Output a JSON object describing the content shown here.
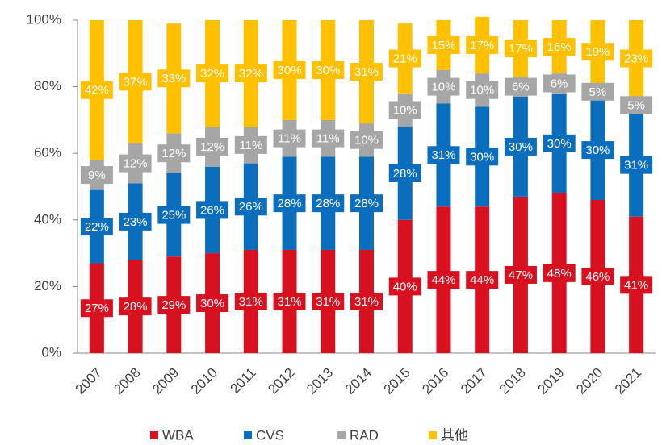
{
  "chart_data": {
    "type": "stacked_bar",
    "categories": [
      "2007",
      "2008",
      "2009",
      "2010",
      "2011",
      "2012",
      "2013",
      "2014",
      "2015",
      "2016",
      "2017",
      "2018",
      "2019",
      "2020",
      "2021"
    ],
    "series": [
      {
        "name": "WBA",
        "color": "#d7111f",
        "values": [
          27,
          28,
          29,
          30,
          31,
          31,
          31,
          31,
          40,
          44,
          44,
          47,
          48,
          46,
          41
        ],
        "value_labels": [
          "27%",
          "28%",
          "29%",
          "30%",
          "31%",
          "31%",
          "31%",
          "31%",
          "40%",
          "44%",
          "44%",
          "47%",
          "48%",
          "46%",
          "41%"
        ]
      },
      {
        "name": "CVS",
        "color": "#0a6ebd",
        "values": [
          22,
          23,
          25,
          26,
          26,
          28,
          28,
          28,
          28,
          31,
          30,
          30,
          30,
          30,
          31
        ],
        "value_labels": [
          "22%",
          "23%",
          "25%",
          "26%",
          "26%",
          "28%",
          "28%",
          "28%",
          "28%",
          "31%",
          "30%",
          "30%",
          "30%",
          "30%",
          "31%"
        ]
      },
      {
        "name": "RAD",
        "color": "#a6a6a6",
        "values": [
          9,
          12,
          12,
          12,
          11,
          11,
          11,
          10,
          10,
          10,
          10,
          6,
          6,
          5,
          5
        ],
        "value_labels": [
          "9%",
          "12%",
          "12%",
          "12%",
          "11%",
          "11%",
          "11%",
          "10%",
          "10%",
          "10%",
          "10%",
          "6%",
          "6%",
          "5%",
          "5%"
        ]
      },
      {
        "name": "其他",
        "color": "#ffc000",
        "values": [
          42,
          37,
          33,
          32,
          32,
          30,
          30,
          31,
          21,
          15,
          17,
          17,
          16,
          19,
          23
        ],
        "value_labels": [
          "42%",
          "37%",
          "33%",
          "32%",
          "32%",
          "30%",
          "30%",
          "31%",
          "21%",
          "15%",
          "17%",
          "17%",
          "16%",
          "19%",
          "23%"
        ]
      }
    ],
    "ylim": [
      0,
      100
    ],
    "yticks": [
      {
        "value": 0,
        "label": "0%"
      },
      {
        "value": 20,
        "label": "20%"
      },
      {
        "value": 40,
        "label": "40%"
      },
      {
        "value": 60,
        "label": "60%"
      },
      {
        "value": 80,
        "label": "80%"
      },
      {
        "value": 100,
        "label": "100%"
      }
    ],
    "legend": "bottom"
  }
}
